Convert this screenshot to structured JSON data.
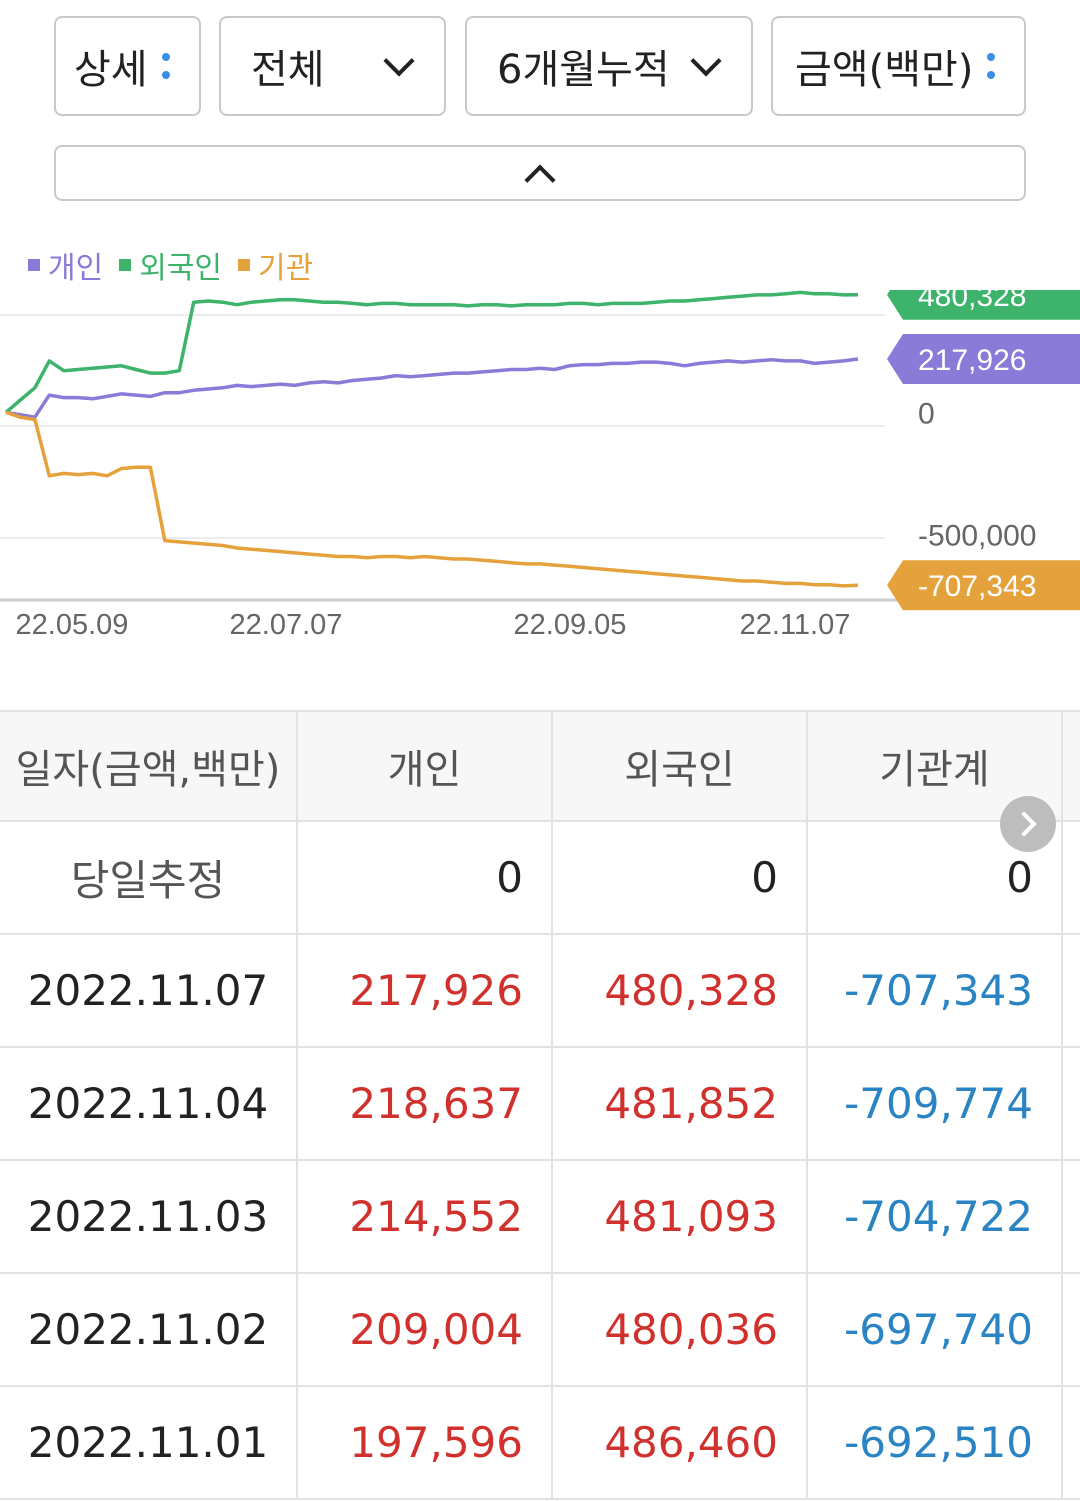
{
  "filters": {
    "detail_label": "상세",
    "scope_label": "전체",
    "period_label": "6개월누적",
    "unit_label": "금액(백만)"
  },
  "colors": {
    "individual": "#8b7bd8",
    "foreign": "#3db36b",
    "institution": "#e5a23c",
    "positive": "#d0312d",
    "negative": "#2a84c4"
  },
  "chart_data": {
    "type": "line",
    "legend_position": "top-left",
    "x_ticks": [
      "22.05.09",
      "22.07.07",
      "22.09.05",
      "22.11.07"
    ],
    "y_ticks": [
      {
        "value": 0,
        "label": "0"
      },
      {
        "value": -500000,
        "label": "-500,000"
      }
    ],
    "ylim": [
      -780000,
      500000
    ],
    "series": [
      {
        "name": "개인",
        "color": "#8b7bd8",
        "end_label": "217,926",
        "values": [
          0,
          -10000,
          -20000,
          70000,
          60000,
          60000,
          55000,
          65000,
          75000,
          70000,
          65000,
          80000,
          80000,
          90000,
          95000,
          100000,
          110000,
          105000,
          110000,
          115000,
          110000,
          120000,
          125000,
          120000,
          130000,
          135000,
          140000,
          150000,
          145000,
          150000,
          155000,
          160000,
          160000,
          165000,
          170000,
          175000,
          175000,
          180000,
          175000,
          190000,
          195000,
          195000,
          200000,
          200000,
          205000,
          205000,
          200000,
          190000,
          200000,
          205000,
          210000,
          205000,
          210000,
          215000,
          210000,
          210000,
          200000,
          205000,
          210000,
          217926
        ]
      },
      {
        "name": "외국인",
        "color": "#3db36b",
        "end_label": "480,328",
        "values": [
          0,
          50000,
          100000,
          210000,
          170000,
          175000,
          180000,
          185000,
          190000,
          175000,
          160000,
          160000,
          170000,
          450000,
          455000,
          450000,
          440000,
          450000,
          455000,
          460000,
          460000,
          455000,
          450000,
          450000,
          445000,
          440000,
          445000,
          445000,
          440000,
          440000,
          440000,
          440000,
          435000,
          440000,
          440000,
          435000,
          440000,
          440000,
          440000,
          445000,
          445000,
          440000,
          445000,
          445000,
          445000,
          450000,
          455000,
          455000,
          460000,
          465000,
          470000,
          475000,
          480000,
          480000,
          485000,
          490000,
          485000,
          485000,
          480000,
          480328
        ]
      },
      {
        "name": "기관",
        "color": "#e5a23c",
        "end_label": "-707,343",
        "values": [
          0,
          -20000,
          -30000,
          -260000,
          -250000,
          -255000,
          -250000,
          -260000,
          -230000,
          -225000,
          -225000,
          -525000,
          -530000,
          -535000,
          -540000,
          -545000,
          -555000,
          -560000,
          -565000,
          -570000,
          -575000,
          -580000,
          -585000,
          -590000,
          -590000,
          -595000,
          -590000,
          -590000,
          -595000,
          -590000,
          -595000,
          -600000,
          -600000,
          -605000,
          -610000,
          -615000,
          -620000,
          -620000,
          -625000,
          -630000,
          -635000,
          -640000,
          -645000,
          -650000,
          -655000,
          -660000,
          -665000,
          -670000,
          -675000,
          -680000,
          -685000,
          -690000,
          -690000,
          -695000,
          -700000,
          -700000,
          -705000,
          -705000,
          -710000,
          -707343
        ]
      }
    ]
  },
  "table": {
    "headers": [
      "일자(금액,백만)",
      "개인",
      "외국인",
      "기관계"
    ],
    "estimate_row": {
      "label": "당일추정",
      "individual": "0",
      "foreign": "0",
      "institution": "0"
    },
    "rows": [
      {
        "date": "2022.11.07",
        "individual": "217,926",
        "foreign": "480,328",
        "institution": "-707,343"
      },
      {
        "date": "2022.11.04",
        "individual": "218,637",
        "foreign": "481,852",
        "institution": "-709,774"
      },
      {
        "date": "2022.11.03",
        "individual": "214,552",
        "foreign": "481,093",
        "institution": "-704,722"
      },
      {
        "date": "2022.11.02",
        "individual": "209,004",
        "foreign": "480,036",
        "institution": "-697,740"
      },
      {
        "date": "2022.11.01",
        "individual": "197,596",
        "foreign": "486,460",
        "institution": "-692,510"
      }
    ]
  }
}
